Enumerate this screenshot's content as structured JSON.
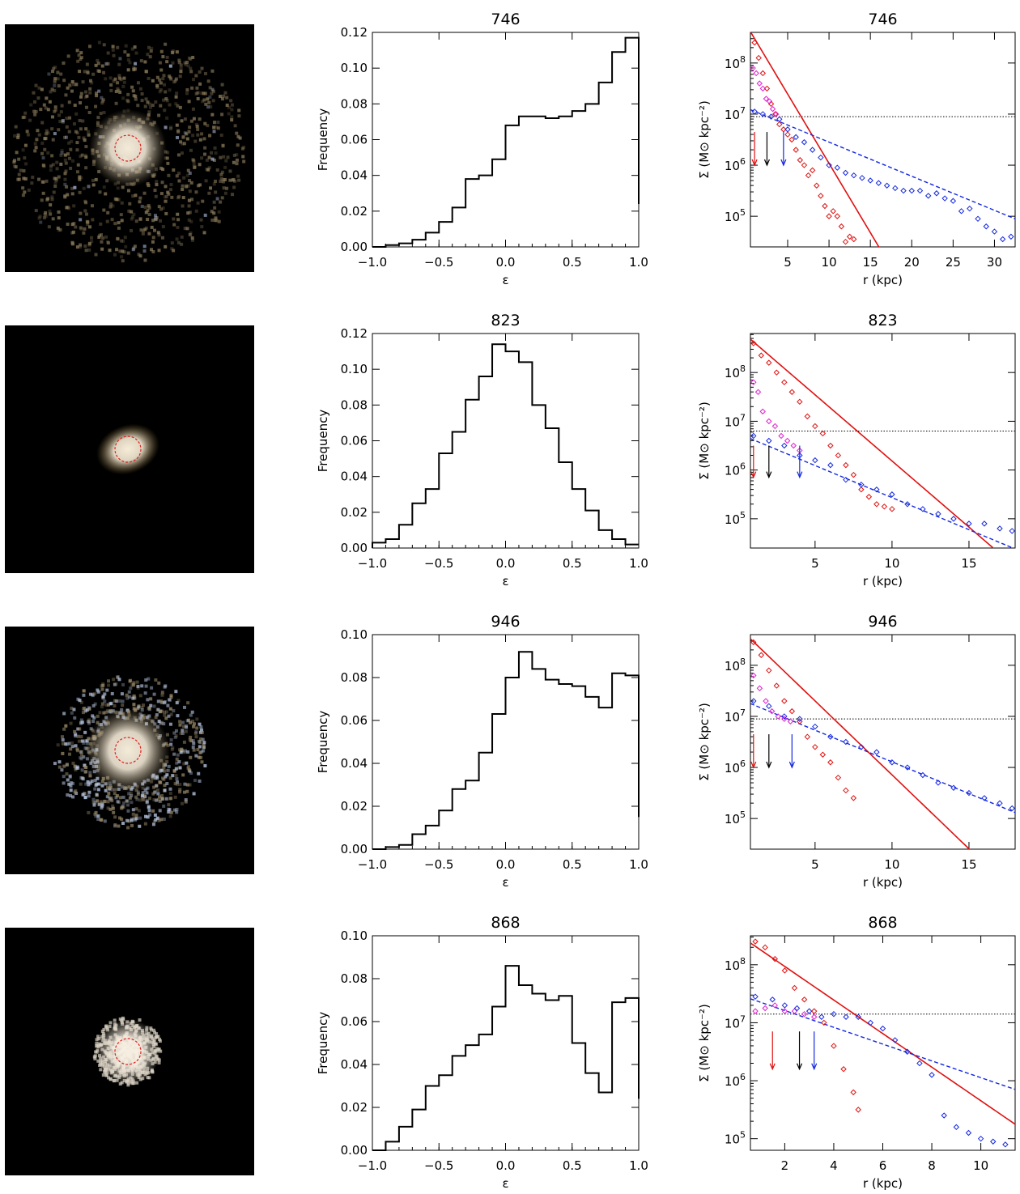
{
  "chart_data": [
    {
      "id": "746",
      "image": {
        "type": "image",
        "description_colors": {
          "core": "#f4ead8",
          "disk": "#8a7a5a",
          "young": "#aab8d8"
        },
        "style": "spiral"
      },
      "histogram": {
        "type": "bar",
        "title": "746",
        "xlabel": "ε",
        "ylabel": "Frequency",
        "xlim": [
          -1.0,
          1.0
        ],
        "ylim": [
          0.0,
          0.12
        ],
        "xticks": [
          "−1.0",
          "−0.5",
          "0.0",
          "0.5",
          "1.0"
        ],
        "yticks": [
          "0.00",
          "0.02",
          "0.04",
          "0.06",
          "0.08",
          "0.10",
          "0.12"
        ],
        "bin_edges": [
          -1.0,
          -0.9,
          -0.8,
          -0.7,
          -0.6,
          -0.5,
          -0.4,
          -0.3,
          -0.2,
          -0.1,
          0.0,
          0.1,
          0.2,
          0.3,
          0.4,
          0.5,
          0.6,
          0.7,
          0.8,
          0.9,
          1.0
        ],
        "values": [
          0.0,
          0.001,
          0.002,
          0.004,
          0.008,
          0.014,
          0.022,
          0.038,
          0.04,
          0.049,
          0.068,
          0.073,
          0.073,
          0.072,
          0.073,
          0.076,
          0.08,
          0.092,
          0.109,
          0.117,
          0.024
        ]
      },
      "profile": {
        "type": "scatter",
        "title": "746",
        "xlabel": "r (kpc)",
        "ylabel": "Σ (M⊙ kpc⁻²)",
        "xlim": [
          0.5,
          32.5
        ],
        "ylim_log10": [
          4.4,
          8.6
        ],
        "xticks": [
          5,
          10,
          15,
          20,
          25,
          30
        ],
        "ytick_exponents": [
          5,
          6,
          7,
          8
        ],
        "hline_log10": 6.95,
        "bulge_fit": {
          "log10_sigma0": 8.75,
          "re_scale": 1.6,
          "n": 1.0
        },
        "disk_fit": {
          "log10_sigma0": 7.12,
          "scale_length": 6.5
        },
        "arrows_x": {
          "red": 1.0,
          "black": 2.5,
          "blue": 4.5
        },
        "arrow_tip_log10": 6.0,
        "red_points": {
          "x": [
            1.0,
            1.5,
            2.0,
            2.5,
            3.0,
            3.5,
            4.0,
            4.5,
            5.0,
            5.5,
            6.0,
            6.5,
            7.0,
            7.5,
            8.0,
            8.5,
            9.0,
            9.5,
            10.0,
            10.5,
            11.0,
            11.5,
            12.0,
            12.5,
            13.0
          ],
          "log10y": [
            8.4,
            8.1,
            7.8,
            7.5,
            7.2,
            7.0,
            6.8,
            6.7,
            6.6,
            6.5,
            6.3,
            6.1,
            6.0,
            5.8,
            5.9,
            5.6,
            5.4,
            5.2,
            5.0,
            5.1,
            5.0,
            4.8,
            4.5,
            4.6,
            4.55
          ]
        },
        "magenta_points": {
          "x": [
            0.8,
            1.2,
            1.6,
            2.0,
            2.4,
            2.8,
            3.2,
            3.6
          ],
          "log10y": [
            7.9,
            7.8,
            7.6,
            7.5,
            7.3,
            7.25,
            7.1,
            7.0
          ]
        },
        "blue_points": {
          "x": [
            1.0,
            2.0,
            3.0,
            4.0,
            5.0,
            6.0,
            7.0,
            8.0,
            9.0,
            10.0,
            11.0,
            12.0,
            13.0,
            14.0,
            15.0,
            16.0,
            17.0,
            18.0,
            19.0,
            20.0,
            21.0,
            22.0,
            23.0,
            24.0,
            25.0,
            26.0,
            27.0,
            28.0,
            29.0,
            30.0,
            31.0,
            32.0
          ],
          "log10y": [
            7.05,
            7.0,
            6.95,
            6.9,
            6.7,
            6.55,
            6.45,
            6.3,
            6.15,
            6.0,
            5.95,
            5.85,
            5.8,
            5.75,
            5.7,
            5.65,
            5.6,
            5.55,
            5.5,
            5.5,
            5.5,
            5.4,
            5.45,
            5.35,
            5.3,
            5.1,
            5.15,
            4.95,
            4.8,
            4.7,
            4.55,
            4.6
          ]
        }
      }
    },
    {
      "id": "823",
      "image": {
        "type": "image",
        "description_colors": {
          "core": "#f6ecd6",
          "disk": "#8a6a30"
        },
        "style": "compact"
      },
      "histogram": {
        "type": "bar",
        "title": "823",
        "xlabel": "ε",
        "ylabel": "Frequency",
        "xlim": [
          -1.0,
          1.0
        ],
        "ylim": [
          0.0,
          0.12
        ],
        "xticks": [
          "−1.0",
          "−0.5",
          "0.0",
          "0.5",
          "1.0"
        ],
        "yticks": [
          "0.00",
          "0.02",
          "0.04",
          "0.06",
          "0.08",
          "0.10",
          "0.12"
        ],
        "bin_edges": [
          -1.0,
          -0.9,
          -0.8,
          -0.7,
          -0.6,
          -0.5,
          -0.4,
          -0.3,
          -0.2,
          -0.1,
          0.0,
          0.1,
          0.2,
          0.3,
          0.4,
          0.5,
          0.6,
          0.7,
          0.8,
          0.9,
          1.0
        ],
        "values": [
          0.003,
          0.005,
          0.013,
          0.025,
          0.033,
          0.053,
          0.065,
          0.083,
          0.096,
          0.114,
          0.11,
          0.104,
          0.08,
          0.067,
          0.048,
          0.033,
          0.021,
          0.01,
          0.005,
          0.002
        ]
      },
      "profile": {
        "type": "scatter",
        "title": "823",
        "xlabel": "r (kpc)",
        "ylabel": "Σ (M⊙ kpc⁻²)",
        "xlim": [
          0.8,
          18.0
        ],
        "ylim_log10": [
          4.4,
          8.8
        ],
        "xticks": [
          5,
          10,
          15
        ],
        "ytick_exponents": [
          5,
          6,
          7,
          8
        ],
        "hline_log10": 6.8,
        "bulge_fit": {
          "log10_sigma0": 8.9,
          "re_scale": 1.6,
          "n": 1.0
        },
        "disk_fit": {
          "log10_sigma0": 6.75,
          "scale_length": 3.3
        },
        "arrows_x": {
          "red": 1.0,
          "black": 2.0,
          "blue": 4.0
        },
        "arrow_tip_log10": 5.85,
        "red_points": {
          "x": [
            1.0,
            1.5,
            2.0,
            2.5,
            3.0,
            3.5,
            4.0,
            4.5,
            5.0,
            5.5,
            6.0,
            6.5,
            7.0,
            7.5,
            8.0,
            8.5,
            9.0,
            9.5,
            10.0
          ],
          "log10y": [
            8.6,
            8.35,
            8.2,
            8.0,
            7.8,
            7.6,
            7.4,
            7.1,
            6.9,
            6.75,
            6.5,
            6.3,
            6.1,
            5.9,
            5.6,
            5.45,
            5.3,
            5.25,
            5.2
          ]
        },
        "magenta_points": {
          "x": [
            1.0,
            1.3,
            1.6,
            2.0,
            2.4,
            2.8,
            3.2,
            3.6,
            4.0
          ],
          "log10y": [
            7.8,
            7.6,
            7.2,
            7.0,
            6.9,
            6.7,
            6.6,
            6.5,
            6.4
          ]
        },
        "blue_points": {
          "x": [
            1.0,
            2.0,
            3.0,
            4.0,
            5.0,
            6.0,
            7.0,
            8.0,
            9.0,
            10.0,
            11.0,
            12.0,
            13.0,
            14.0,
            15.0,
            16.0,
            17.0,
            17.8
          ],
          "log10y": [
            6.7,
            6.6,
            6.5,
            6.3,
            6.2,
            6.1,
            5.8,
            5.7,
            5.6,
            5.5,
            5.3,
            5.2,
            5.1,
            5.0,
            4.9,
            4.9,
            4.8,
            4.75
          ]
        }
      }
    },
    {
      "id": "946",
      "image": {
        "type": "image",
        "description_colors": {
          "core": "#f4ead8",
          "disk": "#9a8a68",
          "young": "#b8c6e0"
        },
        "style": "ring"
      },
      "histogram": {
        "type": "bar",
        "title": "946",
        "xlabel": "ε",
        "ylabel": "Frequency",
        "xlim": [
          -1.0,
          1.0
        ],
        "ylim": [
          0.0,
          0.1
        ],
        "xticks": [
          "−1.0",
          "−0.5",
          "0.0",
          "0.5",
          "1.0"
        ],
        "yticks": [
          "0.00",
          "0.02",
          "0.04",
          "0.06",
          "0.08",
          "0.10"
        ],
        "bin_edges": [
          -1.0,
          -0.9,
          -0.8,
          -0.7,
          -0.6,
          -0.5,
          -0.4,
          -0.3,
          -0.2,
          -0.1,
          0.0,
          0.1,
          0.2,
          0.3,
          0.4,
          0.5,
          0.6,
          0.7,
          0.8,
          0.9,
          1.0
        ],
        "values": [
          0.0,
          0.001,
          0.002,
          0.007,
          0.011,
          0.018,
          0.028,
          0.032,
          0.045,
          0.063,
          0.08,
          0.092,
          0.084,
          0.079,
          0.077,
          0.076,
          0.071,
          0.066,
          0.082,
          0.081,
          0.015
        ]
      },
      "profile": {
        "type": "scatter",
        "title": "946",
        "xlabel": "r (kpc)",
        "ylabel": "Σ (M⊙ kpc⁻²)",
        "xlim": [
          0.8,
          18.0
        ],
        "ylim_log10": [
          4.4,
          8.6
        ],
        "xticks": [
          5,
          10,
          15
        ],
        "ytick_exponents": [
          5,
          6,
          7,
          8
        ],
        "hline_log10": 6.95,
        "bulge_fit": {
          "log10_sigma0": 8.75,
          "re_scale": 1.5,
          "n": 1.0
        },
        "disk_fit": {
          "log10_sigma0": 7.35,
          "scale_length": 3.5
        },
        "arrows_x": {
          "red": 1.0,
          "black": 2.0,
          "blue": 3.5
        },
        "arrow_tip_log10": 6.0,
        "red_points": {
          "x": [
            1.0,
            1.5,
            2.0,
            2.5,
            3.0,
            3.5,
            4.0,
            4.5,
            5.0,
            5.5,
            6.0,
            6.5,
            7.0,
            7.5
          ],
          "log10y": [
            8.45,
            8.2,
            7.9,
            7.6,
            7.3,
            7.1,
            6.9,
            6.6,
            6.4,
            6.25,
            6.1,
            5.8,
            5.55,
            5.4
          ]
        },
        "magenta_points": {
          "x": [
            1.0,
            1.4,
            1.8,
            2.2,
            2.6,
            3.0,
            3.4
          ],
          "log10y": [
            7.8,
            7.55,
            7.3,
            7.1,
            7.0,
            6.95,
            6.9
          ]
        },
        "blue_points": {
          "x": [
            1.0,
            2.0,
            3.0,
            4.0,
            5.0,
            6.0,
            7.0,
            8.0,
            9.0,
            10.0,
            11.0,
            12.0,
            13.0,
            14.0,
            15.0,
            16.0,
            17.0,
            17.8
          ],
          "log10y": [
            7.3,
            7.2,
            7.0,
            6.95,
            6.8,
            6.6,
            6.5,
            6.4,
            6.3,
            6.1,
            6.0,
            5.85,
            5.7,
            5.6,
            5.5,
            5.4,
            5.3,
            5.2
          ]
        }
      }
    },
    {
      "id": "868",
      "image": {
        "type": "image",
        "description_colors": {
          "core": "#f8f0e2",
          "disk": "#d8d0c2"
        },
        "style": "compact-disk"
      },
      "histogram": {
        "type": "bar",
        "title": "868",
        "xlabel": "ε",
        "ylabel": "Frequency",
        "xlim": [
          -1.0,
          1.0
        ],
        "ylim": [
          0.0,
          0.1
        ],
        "xticks": [
          "−1.0",
          "−0.5",
          "0.0",
          "0.5",
          "1.0"
        ],
        "yticks": [
          "0.00",
          "0.02",
          "0.04",
          "0.06",
          "0.08",
          "0.10"
        ],
        "bin_edges": [
          -1.0,
          -0.9,
          -0.8,
          -0.7,
          -0.6,
          -0.5,
          -0.4,
          -0.3,
          -0.2,
          -0.1,
          0.0,
          0.1,
          0.2,
          0.3,
          0.4,
          0.5,
          0.6,
          0.7,
          0.8,
          0.9,
          1.0
        ],
        "values": [
          0.0,
          0.004,
          0.011,
          0.019,
          0.03,
          0.035,
          0.044,
          0.049,
          0.054,
          0.067,
          0.086,
          0.077,
          0.073,
          0.07,
          0.072,
          0.05,
          0.036,
          0.027,
          0.069,
          0.071,
          0.024
        ]
      },
      "profile": {
        "type": "scatter",
        "title": "868",
        "xlabel": "r (kpc)",
        "ylabel": "Σ (M⊙ kpc⁻²)",
        "xlim": [
          0.6,
          11.4
        ],
        "ylim_log10": [
          4.8,
          8.5
        ],
        "xticks": [
          2,
          4,
          6,
          8,
          10
        ],
        "ytick_exponents": [
          5,
          6,
          7,
          8
        ],
        "hline_log10": 7.15,
        "bulge_fit": {
          "log10_sigma0": 8.55,
          "re_scale": 1.5,
          "n": 1.0
        },
        "disk_fit": {
          "log10_sigma0": 7.5,
          "scale_length": 3.0
        },
        "arrows_x": {
          "red": 1.5,
          "black": 2.6,
          "blue": 3.2
        },
        "arrow_tip_log10": 6.2,
        "red_points": {
          "x": [
            0.8,
            1.2,
            1.6,
            2.0,
            2.4,
            2.8,
            3.2,
            3.6,
            4.0,
            4.4,
            4.8,
            5.0
          ],
          "log10y": [
            8.4,
            8.3,
            8.1,
            7.9,
            7.6,
            7.4,
            7.2,
            7.0,
            6.6,
            6.2,
            5.8,
            5.5
          ]
        },
        "magenta_points": {
          "x": [
            0.8,
            1.2,
            1.6,
            2.0,
            2.4,
            2.8,
            3.2
          ],
          "log10y": [
            7.2,
            7.25,
            7.3,
            7.2,
            7.2,
            7.15,
            7.1
          ]
        },
        "blue_points": {
          "x": [
            0.8,
            1.5,
            2.0,
            2.5,
            3.0,
            3.5,
            4.0,
            4.5,
            5.0,
            5.5,
            6.0,
            6.5,
            7.0,
            7.5,
            8.0,
            8.5,
            9.0,
            9.5,
            10.0,
            10.5,
            11.0
          ],
          "log10y": [
            7.45,
            7.4,
            7.3,
            7.25,
            7.2,
            7.1,
            7.15,
            7.1,
            7.1,
            7.0,
            6.9,
            6.7,
            6.5,
            6.3,
            6.1,
            5.4,
            5.2,
            5.1,
            5.0,
            4.95,
            4.9
          ]
        }
      }
    }
  ]
}
